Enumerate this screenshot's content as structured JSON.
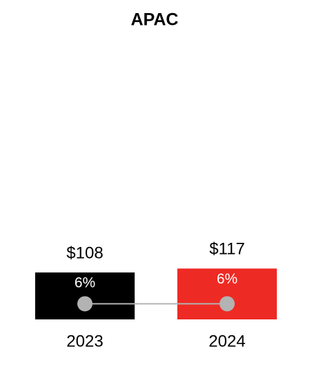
{
  "chart_data": {
    "type": "bar",
    "title": "APAC",
    "categories": [
      "2023",
      "2024"
    ],
    "series": [
      {
        "type": "bar",
        "values": [
          108,
          117
        ],
        "value_labels": [
          "$108",
          "$117"
        ],
        "colors": [
          "#000000",
          "#ee2a24"
        ]
      },
      {
        "type": "line",
        "axis": "y2",
        "values": [
          6,
          6
        ],
        "value_labels": [
          "6%",
          "6%"
        ],
        "color": "#b3b3b3",
        "label_color": "#ffffff"
      }
    ],
    "ylim": [
      0,
      600
    ],
    "y2lim": [
      0,
      100
    ]
  }
}
